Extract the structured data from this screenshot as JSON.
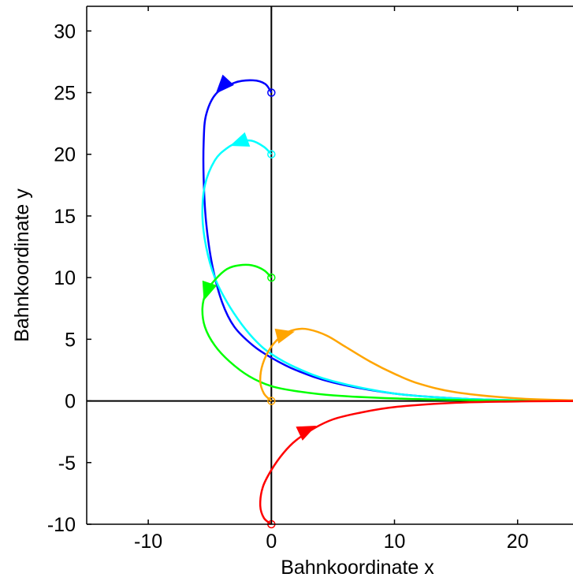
{
  "chart_data": {
    "type": "line",
    "title": "",
    "xlabel": "Bahnkoordinate x",
    "ylabel": "Bahnkoordinate y",
    "xlim": [
      -15,
      24.5
    ],
    "ylim": [
      -10,
      32
    ],
    "xticks": [
      -10,
      0,
      10,
      20
    ],
    "yticks": [
      -10,
      -5,
      0,
      5,
      10,
      15,
      20,
      25,
      30
    ],
    "xtick_labels": [
      "-10",
      "0",
      "10",
      "20"
    ],
    "ytick_labels": [
      "-10",
      "-5",
      "0",
      "5",
      "10",
      "15",
      "20",
      "25",
      "30"
    ],
    "grid": false,
    "legend": "none",
    "reference_lines": [
      {
        "orientation": "vertical",
        "at": 0,
        "color": "#000000"
      },
      {
        "orientation": "horizontal",
        "at": 0,
        "color": "#000000"
      }
    ],
    "series": [
      {
        "color": "#0000ff",
        "start": [
          0,
          25
        ],
        "arrow": {
          "at": [
            -3.9,
            25.6
          ],
          "toward": [
            -5.0,
            24.4
          ]
        },
        "x": [
          0,
          -0.5,
          -1.5,
          -3.0,
          -4.5,
          -5.3,
          -5.5,
          -5.5,
          -5.3,
          -4.8,
          -4.0,
          -3.0,
          -1.5,
          0,
          2,
          5,
          10,
          15,
          20,
          24.5
        ],
        "y": [
          25,
          25.7,
          26,
          25.8,
          24.9,
          23.2,
          21.0,
          18.0,
          14.5,
          11.0,
          8.0,
          6.0,
          4.5,
          3.5,
          2.5,
          1.5,
          0.6,
          0.2,
          0.05,
          0.01
        ]
      },
      {
        "color": "#00ffff",
        "start": [
          0,
          20
        ],
        "arrow": {
          "at": [
            -2.5,
            21.0
          ],
          "toward": [
            -3.6,
            20.6
          ]
        },
        "x": [
          0,
          -0.6,
          -1.6,
          -2.6,
          -3.6,
          -4.6,
          -5.4,
          -5.6,
          -5.3,
          -4.6,
          -3.6,
          -2.4,
          -1.2,
          0,
          2,
          5,
          10,
          15,
          20,
          24.5
        ],
        "y": [
          20,
          20.6,
          21.1,
          21.0,
          20.5,
          19.5,
          17.5,
          15.0,
          12.5,
          10.0,
          8.0,
          6.2,
          4.8,
          3.8,
          2.7,
          1.6,
          0.6,
          0.2,
          0.05,
          0.01
        ]
      },
      {
        "color": "#00ff00",
        "start": [
          0,
          10
        ],
        "arrow": {
          "at": [
            -5.2,
            9.0
          ],
          "toward": [
            -5.6,
            7.8
          ]
        },
        "x": [
          0,
          -0.6,
          -1.6,
          -2.6,
          -3.6,
          -4.6,
          -5.3,
          -5.6,
          -5.4,
          -4.6,
          -3.4,
          -1.8,
          0,
          2,
          5,
          10,
          15,
          20,
          24.5
        ],
        "y": [
          10,
          10.6,
          11.0,
          11.0,
          10.7,
          9.8,
          8.8,
          7.5,
          6.0,
          4.5,
          3.2,
          2.0,
          1.2,
          0.8,
          0.45,
          0.2,
          0.08,
          0.02,
          0.01
        ]
      },
      {
        "color": "#ffa500",
        "start": [
          0,
          0
        ],
        "arrow": {
          "at": [
            1.0,
            5.4
          ],
          "toward": [
            2.6,
            5.8
          ]
        },
        "x": [
          0,
          -0.6,
          -0.9,
          -0.7,
          0,
          1.0,
          2.0,
          3.0,
          4.5,
          6.0,
          8.0,
          10,
          12,
          15,
          20,
          24.5
        ],
        "y": [
          0,
          0.6,
          1.6,
          3.0,
          4.4,
          5.4,
          5.8,
          5.8,
          5.3,
          4.4,
          3.2,
          2.2,
          1.4,
          0.7,
          0.2,
          0.05
        ]
      },
      {
        "color": "#ff0000",
        "start": [
          0,
          -10
        ],
        "arrow": {
          "at": [
            2.8,
            -2.4
          ],
          "toward": [
            4.5,
            -1.6
          ]
        },
        "x": [
          0,
          -0.6,
          -0.9,
          -0.7,
          0,
          1.0,
          2.0,
          3.5,
          5.0,
          7.0,
          10,
          15,
          20,
          24.5
        ],
        "y": [
          -10,
          -9.5,
          -8.5,
          -7.0,
          -5.6,
          -4.2,
          -3.2,
          -2.2,
          -1.5,
          -1.0,
          -0.5,
          -0.15,
          -0.04,
          -0.01
        ]
      }
    ]
  }
}
